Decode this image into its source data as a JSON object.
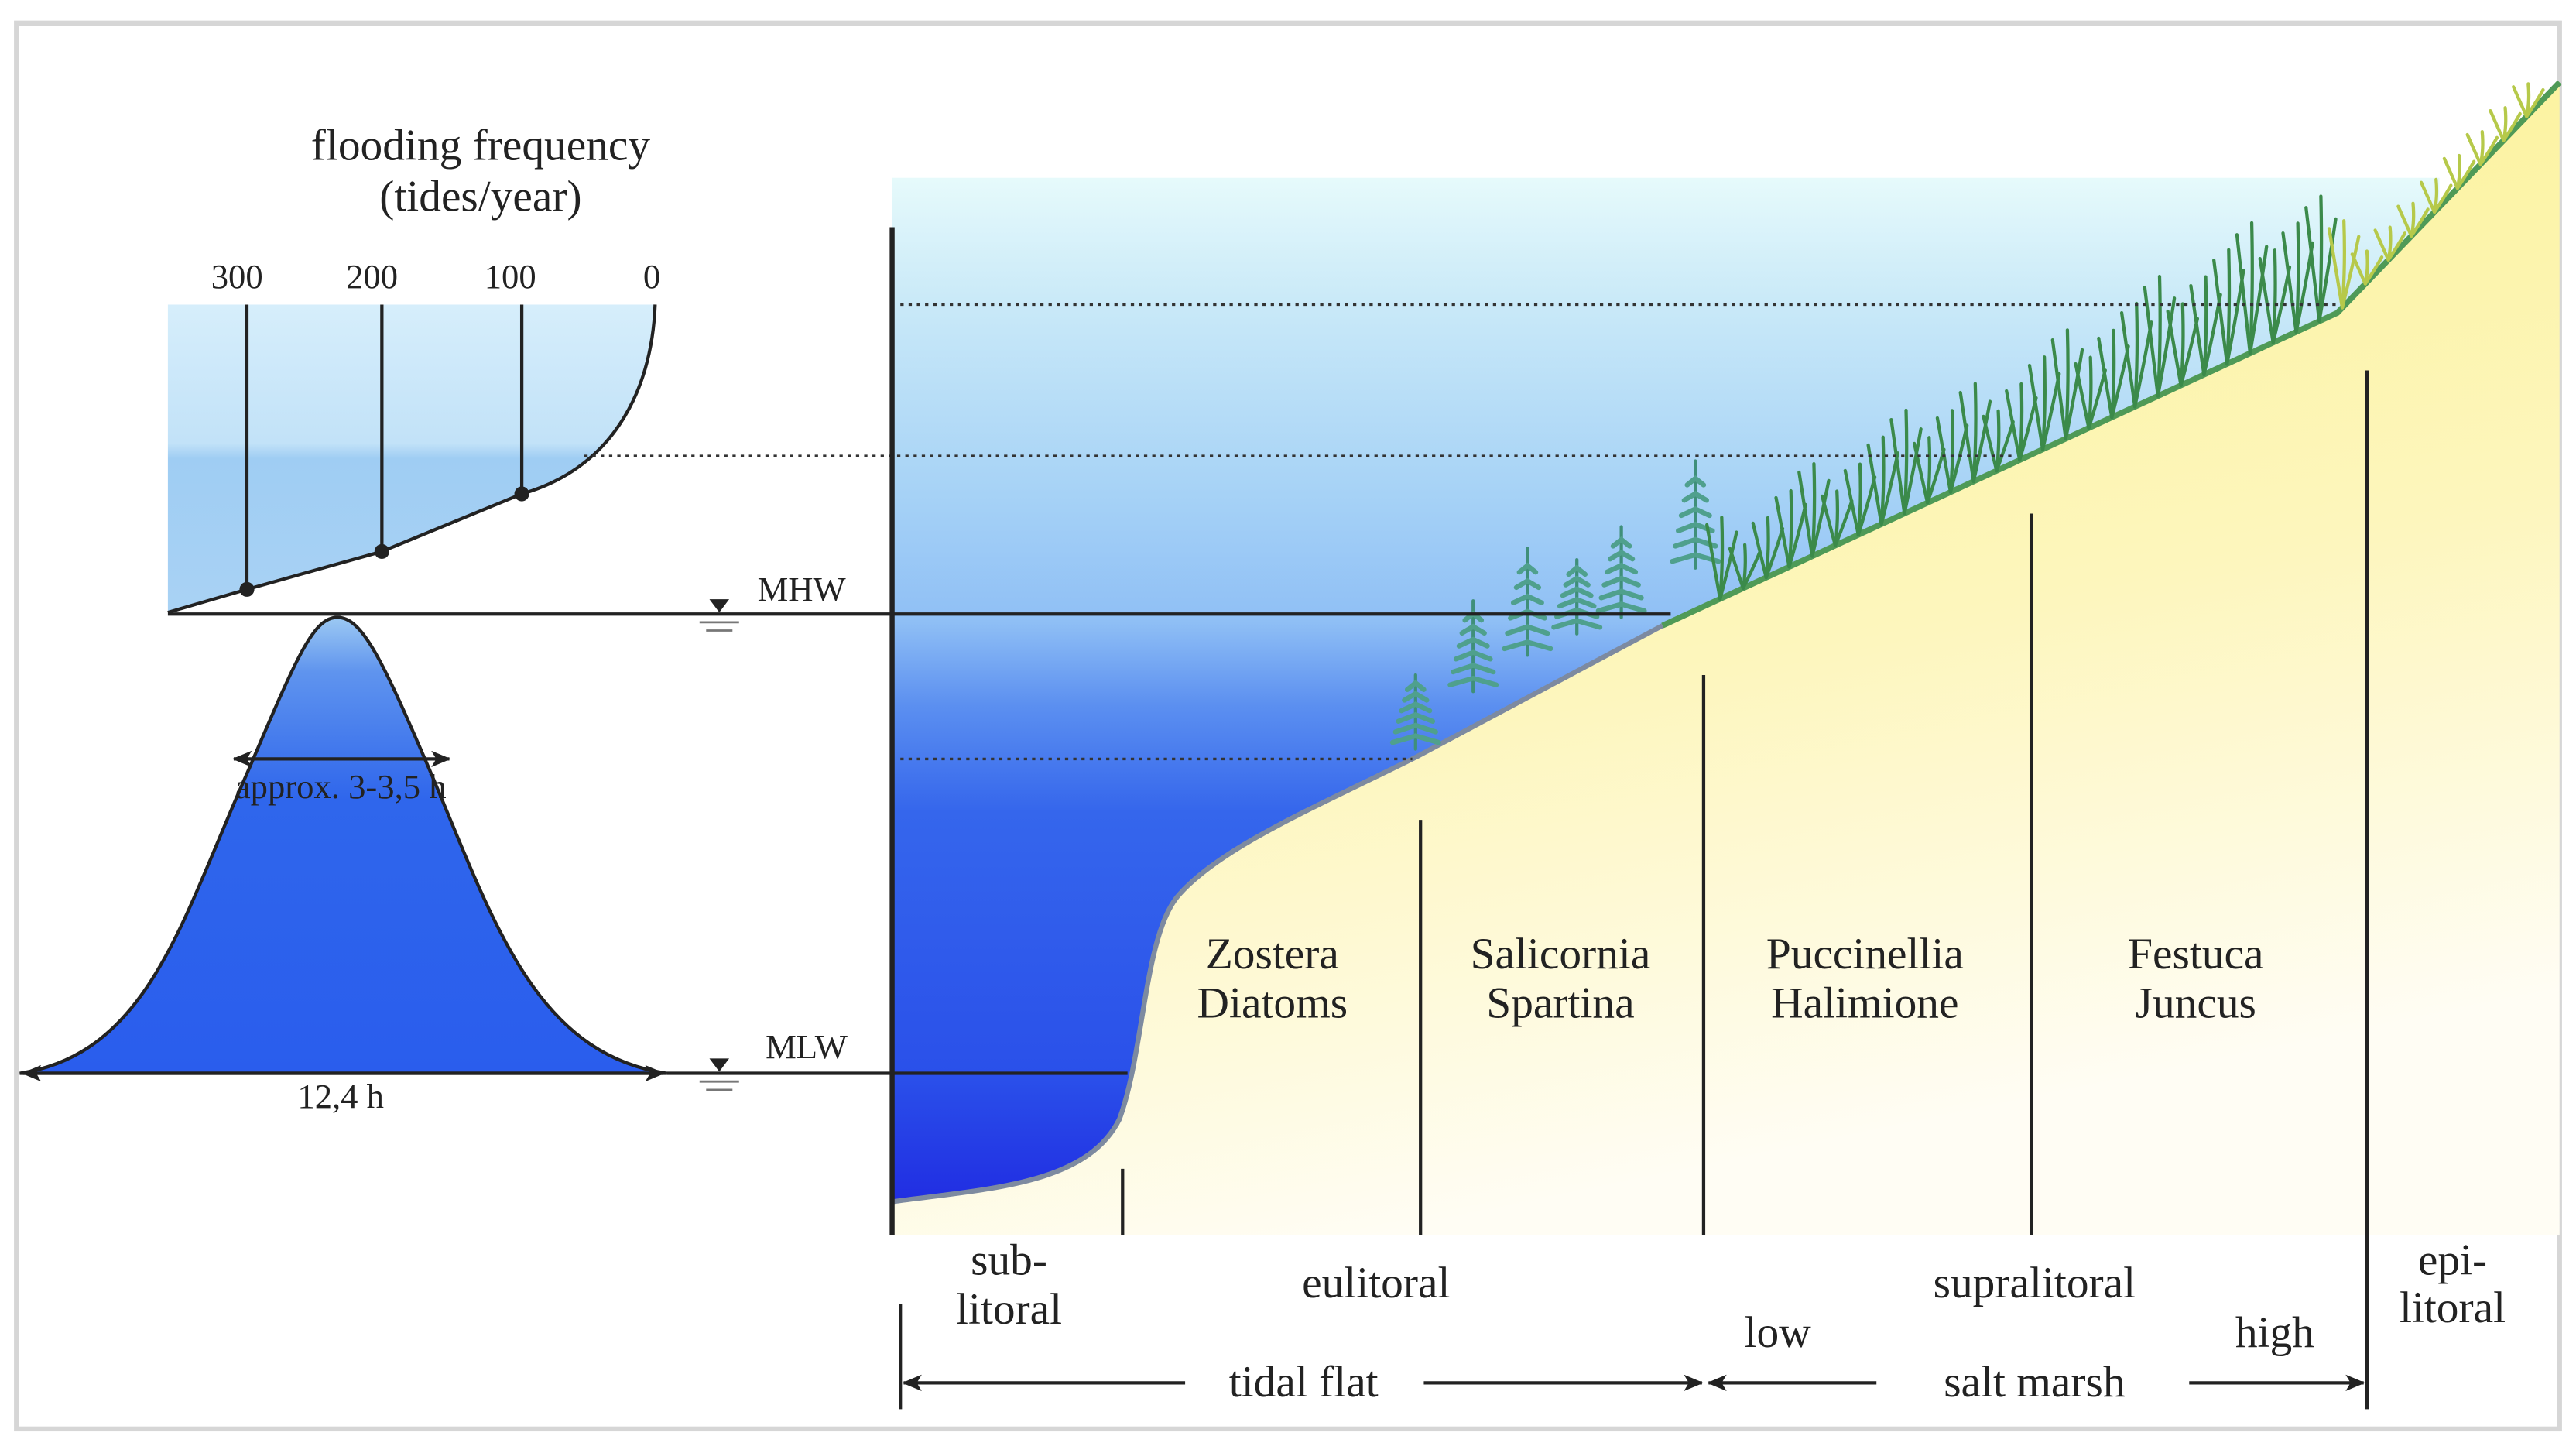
{
  "frequency_panel": {
    "title": "flooding frequency",
    "subtitle": "(tides/year)",
    "ticks": [
      300,
      200,
      100,
      0
    ]
  },
  "tide_curve": {
    "duration_label": "approx. 3-3,5 h",
    "period_label": "12,4 h"
  },
  "levels": {
    "high_water": "MHW",
    "low_water": "MLW"
  },
  "vegetation_zones": [
    {
      "lines": [
        "Zostera",
        "Diatoms"
      ]
    },
    {
      "lines": [
        "Salicornia",
        "Spartina"
      ]
    },
    {
      "lines": [
        "Puccinellia",
        "Halimione"
      ]
    },
    {
      "lines": [
        "Festuca",
        "Juncus"
      ]
    }
  ],
  "littoral_zones": [
    {
      "lines": [
        "sub-",
        "litoral"
      ]
    },
    {
      "lines": [
        "eulitoral"
      ]
    },
    {
      "lines": [
        "supralitoral"
      ]
    },
    {
      "lines": [
        "epi-",
        "litoral"
      ]
    }
  ],
  "marsh_levels": [
    "low",
    "high"
  ],
  "landforms": [
    "tidal flat",
    "salt marsh"
  ]
}
